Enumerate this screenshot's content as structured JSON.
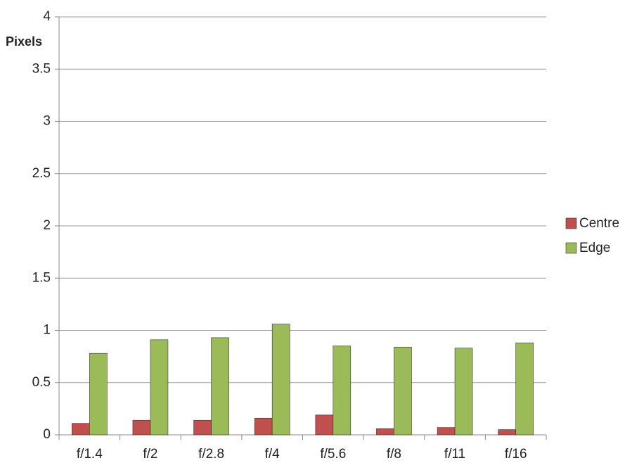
{
  "chart_data": {
    "type": "bar",
    "y_label": "Pixels",
    "categories": [
      "f/1.4",
      "f/2",
      "f/2.8",
      "f/4",
      "f/5.6",
      "f/8",
      "f/11",
      "f/16"
    ],
    "series": [
      {
        "name": "Centre",
        "color": "#c0504d",
        "values": [
          0.11,
          0.14,
          0.14,
          0.16,
          0.19,
          0.06,
          0.07,
          0.05
        ]
      },
      {
        "name": "Edge",
        "color": "#9bbb59",
        "values": [
          0.78,
          0.91,
          0.93,
          1.06,
          0.85,
          0.84,
          0.83,
          0.88
        ]
      }
    ],
    "ylim": [
      0,
      4
    ],
    "yticks": [
      0,
      0.5,
      1,
      1.5,
      2,
      2.5,
      3,
      3.5,
      4
    ],
    "grid": true,
    "legend": "right"
  }
}
